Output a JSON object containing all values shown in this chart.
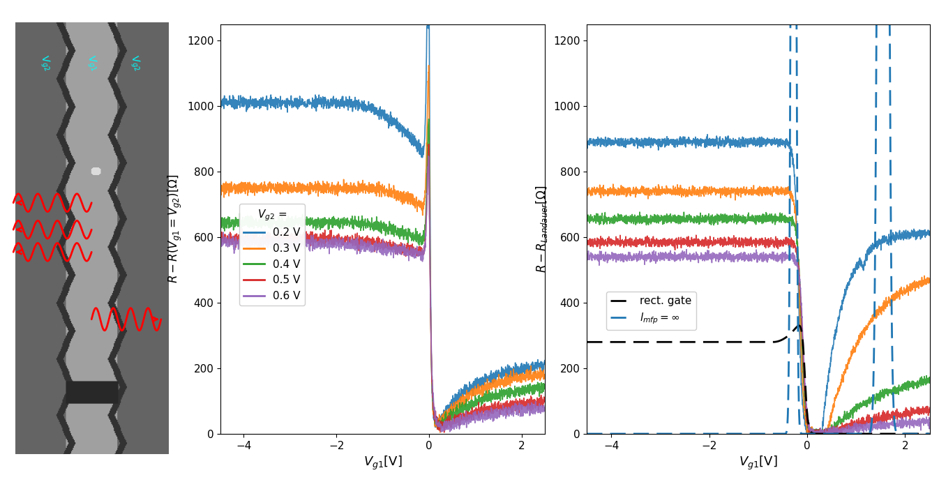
{
  "fig_width": 13.46,
  "fig_height": 6.91,
  "xticks": [
    -4,
    -2,
    0,
    2
  ],
  "yticks": [
    0,
    200,
    400,
    600,
    800,
    1000,
    1200
  ],
  "xlabel": "$V_{g1}$[V]",
  "ylabel1": "$R - R(V_{g1} = V_{g2})$[$\\Omega$]",
  "ylabel2": "$R - R_{Landauer}$[$\\Omega$]",
  "colors": {
    "blue": "#1f77b4",
    "orange": "#ff7f0e",
    "green": "#2ca02c",
    "red": "#d62728",
    "purple": "#9467bd"
  },
  "legend1_title": "$V_{g2}$ =",
  "legend1_labels": [
    "0.2 V",
    "0.3 V",
    "0.4 V",
    "0.5 V",
    "0.6 V"
  ],
  "legend2_labels": [
    "rect. gate",
    "$l_{mfp} = \\infty$"
  ]
}
